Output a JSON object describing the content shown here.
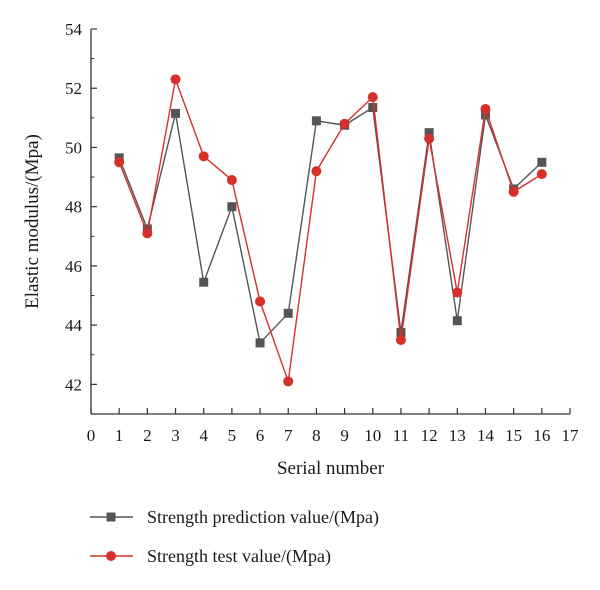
{
  "chart_data": {
    "type": "line",
    "xlabel": "Serial number",
    "ylabel": "Elastic modulus/(Mpa)",
    "xlim": [
      0,
      17
    ],
    "ylim": [
      41,
      54
    ],
    "xticks": [
      0,
      1,
      2,
      3,
      4,
      5,
      6,
      7,
      8,
      9,
      10,
      11,
      12,
      13,
      14,
      15,
      16,
      17
    ],
    "yticks": [
      42,
      44,
      46,
      48,
      50,
      52,
      54
    ],
    "grid": false,
    "legend_position": "bottom",
    "x": [
      1,
      2,
      3,
      4,
      5,
      6,
      7,
      8,
      9,
      10,
      11,
      12,
      13,
      14,
      15,
      16
    ],
    "series": [
      {
        "name": "Strength prediction value/(Mpa)",
        "marker": "square",
        "color": "#555555",
        "values": [
          49.65,
          47.25,
          51.15,
          45.45,
          48.0,
          43.4,
          44.4,
          50.9,
          50.75,
          51.35,
          43.75,
          50.5,
          44.15,
          51.1,
          48.6,
          49.5
        ]
      },
      {
        "name": "Strength test value/(Mpa)",
        "marker": "circle",
        "color": "#d6302a",
        "values": [
          49.5,
          47.1,
          52.3,
          49.7,
          48.9,
          44.8,
          42.1,
          49.2,
          50.8,
          51.7,
          43.5,
          50.3,
          45.1,
          51.3,
          48.5,
          49.1
        ]
      }
    ]
  }
}
